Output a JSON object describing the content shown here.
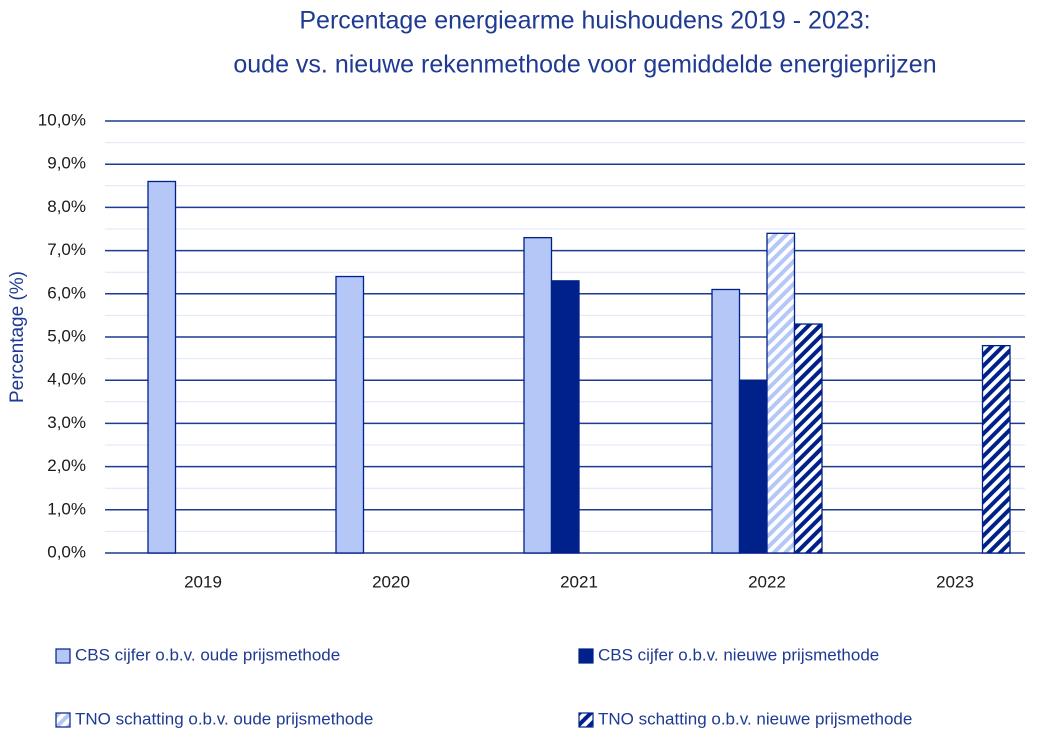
{
  "chart_data": {
    "type": "bar",
    "title": [
      "Percentage energiearme huishoudens 2019 - 2023:",
      "oude vs. nieuwe rekenmethode voor gemiddelde energieprijzen"
    ],
    "y_label": "Percentage (%)",
    "categories": [
      "2019",
      "2020",
      "2021",
      "2022",
      "2023"
    ],
    "series": [
      {
        "name": "CBS cijfer o.b.v. oude prijsmethode",
        "color": "#b4c7f7",
        "hatch": false,
        "values": [
          8.6,
          6.4,
          7.3,
          6.1,
          null
        ]
      },
      {
        "name": "CBS cijfer o.b.v. nieuwe prijsmethode",
        "color": "#00218a",
        "hatch": false,
        "values": [
          null,
          null,
          6.3,
          4.0,
          null
        ]
      },
      {
        "name": "TNO schatting o.b.v. oude prijsmethode",
        "color": "#b4c7f7",
        "hatch": true,
        "values": [
          null,
          null,
          null,
          7.4,
          null
        ]
      },
      {
        "name": "TNO schatting o.b.v. nieuwe prijsmethode",
        "color": "#00218a",
        "hatch": true,
        "values": [
          null,
          null,
          null,
          5.3,
          4.8
        ]
      }
    ],
    "ylim": [
      0,
      10
    ],
    "yticks": [
      {
        "value": 0,
        "label": "0,0%"
      },
      {
        "value": 1,
        "label": "1,0%"
      },
      {
        "value": 2,
        "label": "2,0%"
      },
      {
        "value": 3,
        "label": "3,0%"
      },
      {
        "value": 4,
        "label": "4,0%"
      },
      {
        "value": 5,
        "label": "5,0%"
      },
      {
        "value": 6,
        "label": "6,0%"
      },
      {
        "value": 7,
        "label": "7,0%"
      },
      {
        "value": 8,
        "label": "8,0%"
      },
      {
        "value": 9,
        "label": "9,0%"
      },
      {
        "value": 10,
        "label": "10,0%"
      }
    ],
    "grid": true,
    "legend": "bottom"
  }
}
